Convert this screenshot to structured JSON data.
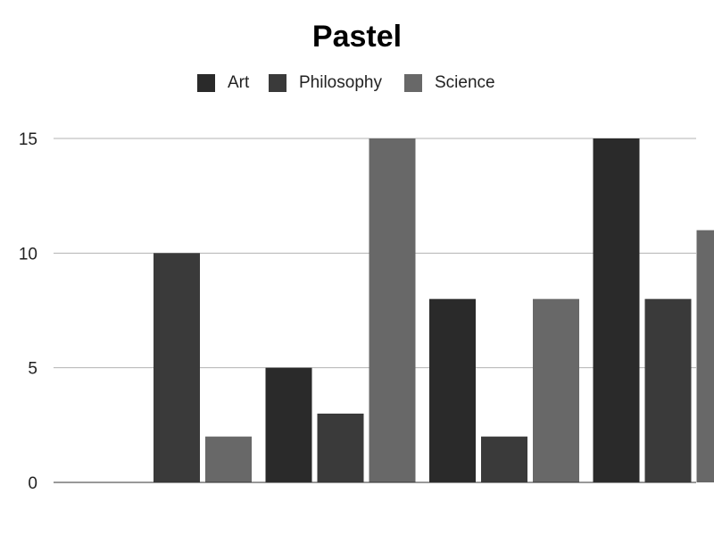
{
  "chart_data": {
    "type": "bar",
    "title": "Pastel",
    "xlabel": "",
    "ylabel": "",
    "categories": [
      "",
      "",
      "",
      ""
    ],
    "series": [
      {
        "name": "Art",
        "color": "#2a2a2a",
        "values": [
          0,
          5,
          8,
          15
        ]
      },
      {
        "name": "Philosophy",
        "color": "#3a3a3a",
        "values": [
          10,
          3,
          2,
          8
        ]
      },
      {
        "name": "Science",
        "color": "#686868",
        "values": [
          2,
          15,
          8,
          11
        ]
      }
    ],
    "ylim": [
      0,
      15
    ],
    "yticks": [
      0,
      5,
      10,
      15
    ],
    "grid": true,
    "legend_position": "top"
  }
}
